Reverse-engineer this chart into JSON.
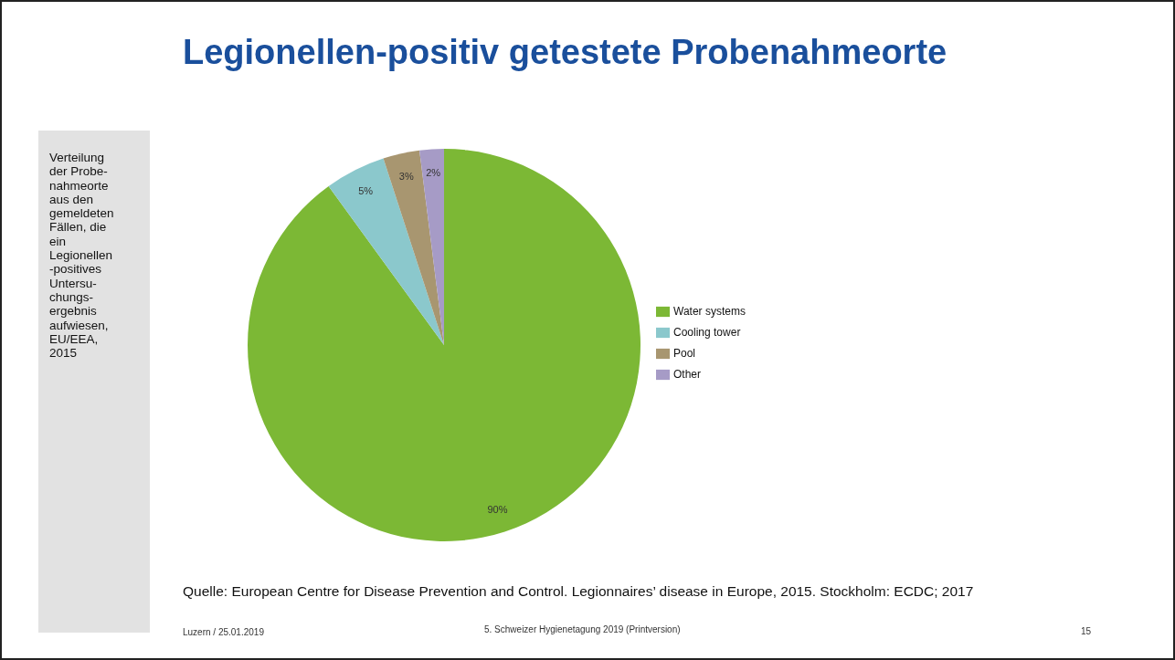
{
  "chart_data": {
    "type": "pie",
    "title": "Legionellen-positiv getestete Probenahmeorte",
    "categories": [
      "Water systems",
      "Cooling tower",
      "Pool",
      "Other"
    ],
    "values": [
      90,
      5,
      3,
      2
    ],
    "colors": [
      "#7cb835",
      "#8bc8cc",
      "#a89670",
      "#a69bc6"
    ],
    "value_labels": [
      "90%",
      "5%",
      "3%",
      "2%"
    ],
    "legend": "right",
    "annotations": [
      "Verteilung\nder Probe-\nnahmeorte\naus den\ngemeldeten\nFällen, die\nein\nLegionellen\n-positives\nUntersu-\nchungs-\nergebnis\naufwiesen,\nEU/EEA,\n2015",
      "Quelle: European Centre for Disease Prevention and Control. Legionnaires’ disease in Europe, 2015. Stockholm: ECDC; 2017",
      "Luzern / 25.01.2019",
      "5. Schweizer Hygienetagung 2019 (Printversion)",
      "15"
    ]
  }
}
